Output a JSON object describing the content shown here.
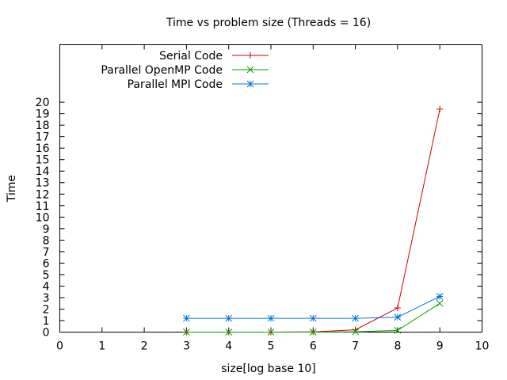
{
  "chart_data": {
    "type": "line",
    "title": "Time vs problem size (Threads = 16)",
    "xlabel": "size[log base 10]",
    "ylabel": "Time",
    "xlim": [
      0,
      10
    ],
    "ylim": [
      0,
      20
    ],
    "xticks": [
      0,
      1,
      2,
      3,
      4,
      5,
      6,
      7,
      8,
      9,
      10
    ],
    "yticks": [
      0,
      1,
      2,
      3,
      4,
      5,
      6,
      7,
      8,
      9,
      10,
      11,
      12,
      13,
      14,
      15,
      16,
      17,
      18,
      19,
      20
    ],
    "ymax_display": 25,
    "grid": false,
    "legend_position": "top-left",
    "x": [
      3,
      4,
      5,
      6,
      7,
      8,
      9
    ],
    "series": [
      {
        "name": "Serial Code",
        "color": "#cc0000",
        "marker": "plus",
        "values": [
          0.0,
          0.0,
          0.0,
          0.02,
          0.2,
          2.1,
          19.4
        ]
      },
      {
        "name": "Parallel OpenMP Code",
        "color": "#00a000",
        "marker": "cross",
        "values": [
          0.0,
          0.0,
          0.0,
          0.0,
          0.03,
          0.15,
          2.5
        ]
      },
      {
        "name": "Parallel MPI Code",
        "color": "#0077dd",
        "marker": "star",
        "values": [
          1.2,
          1.2,
          1.2,
          1.2,
          1.2,
          1.3,
          3.1
        ]
      }
    ]
  }
}
